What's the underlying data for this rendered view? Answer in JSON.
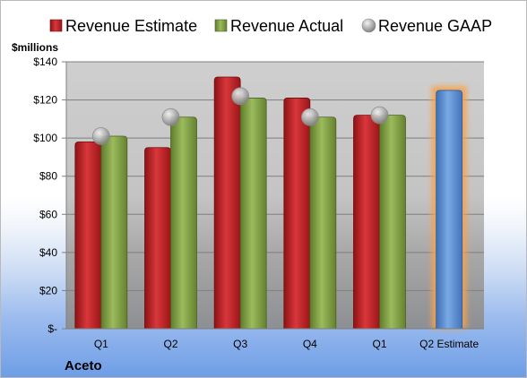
{
  "chart_data": {
    "type": "bar",
    "company": "Aceto",
    "unit_label": "$millions",
    "categories": [
      "Q1",
      "Q2",
      "Q3",
      "Q4",
      "Q1",
      "Q2 Estimate"
    ],
    "ylim": [
      0,
      140
    ],
    "ytick_values": [
      0,
      20,
      40,
      60,
      80,
      100,
      120,
      140
    ],
    "ytick_labels": [
      "$-",
      "$20",
      "$40",
      "$60",
      "$80",
      "$100",
      "$120",
      "$140"
    ],
    "grid": true,
    "legend_position": "top",
    "series": [
      {
        "name": "Revenue Estimate",
        "kind": "bar",
        "color": "#c0282d",
        "values": [
          98,
          95,
          132,
          121,
          112,
          null
        ]
      },
      {
        "name": "Revenue Actual",
        "kind": "bar",
        "color": "#86a84a",
        "values": [
          101,
          111,
          121,
          111,
          112,
          null
        ]
      },
      {
        "name": "Revenue GAAP",
        "kind": "marker",
        "color": "#a6a6a6",
        "values": [
          101,
          111,
          122,
          111,
          112,
          null
        ]
      },
      {
        "name": "",
        "kind": "bar",
        "color": "#5f95d6",
        "highlight": "#f7a24b",
        "values": [
          null,
          null,
          null,
          null,
          null,
          125
        ]
      }
    ]
  }
}
